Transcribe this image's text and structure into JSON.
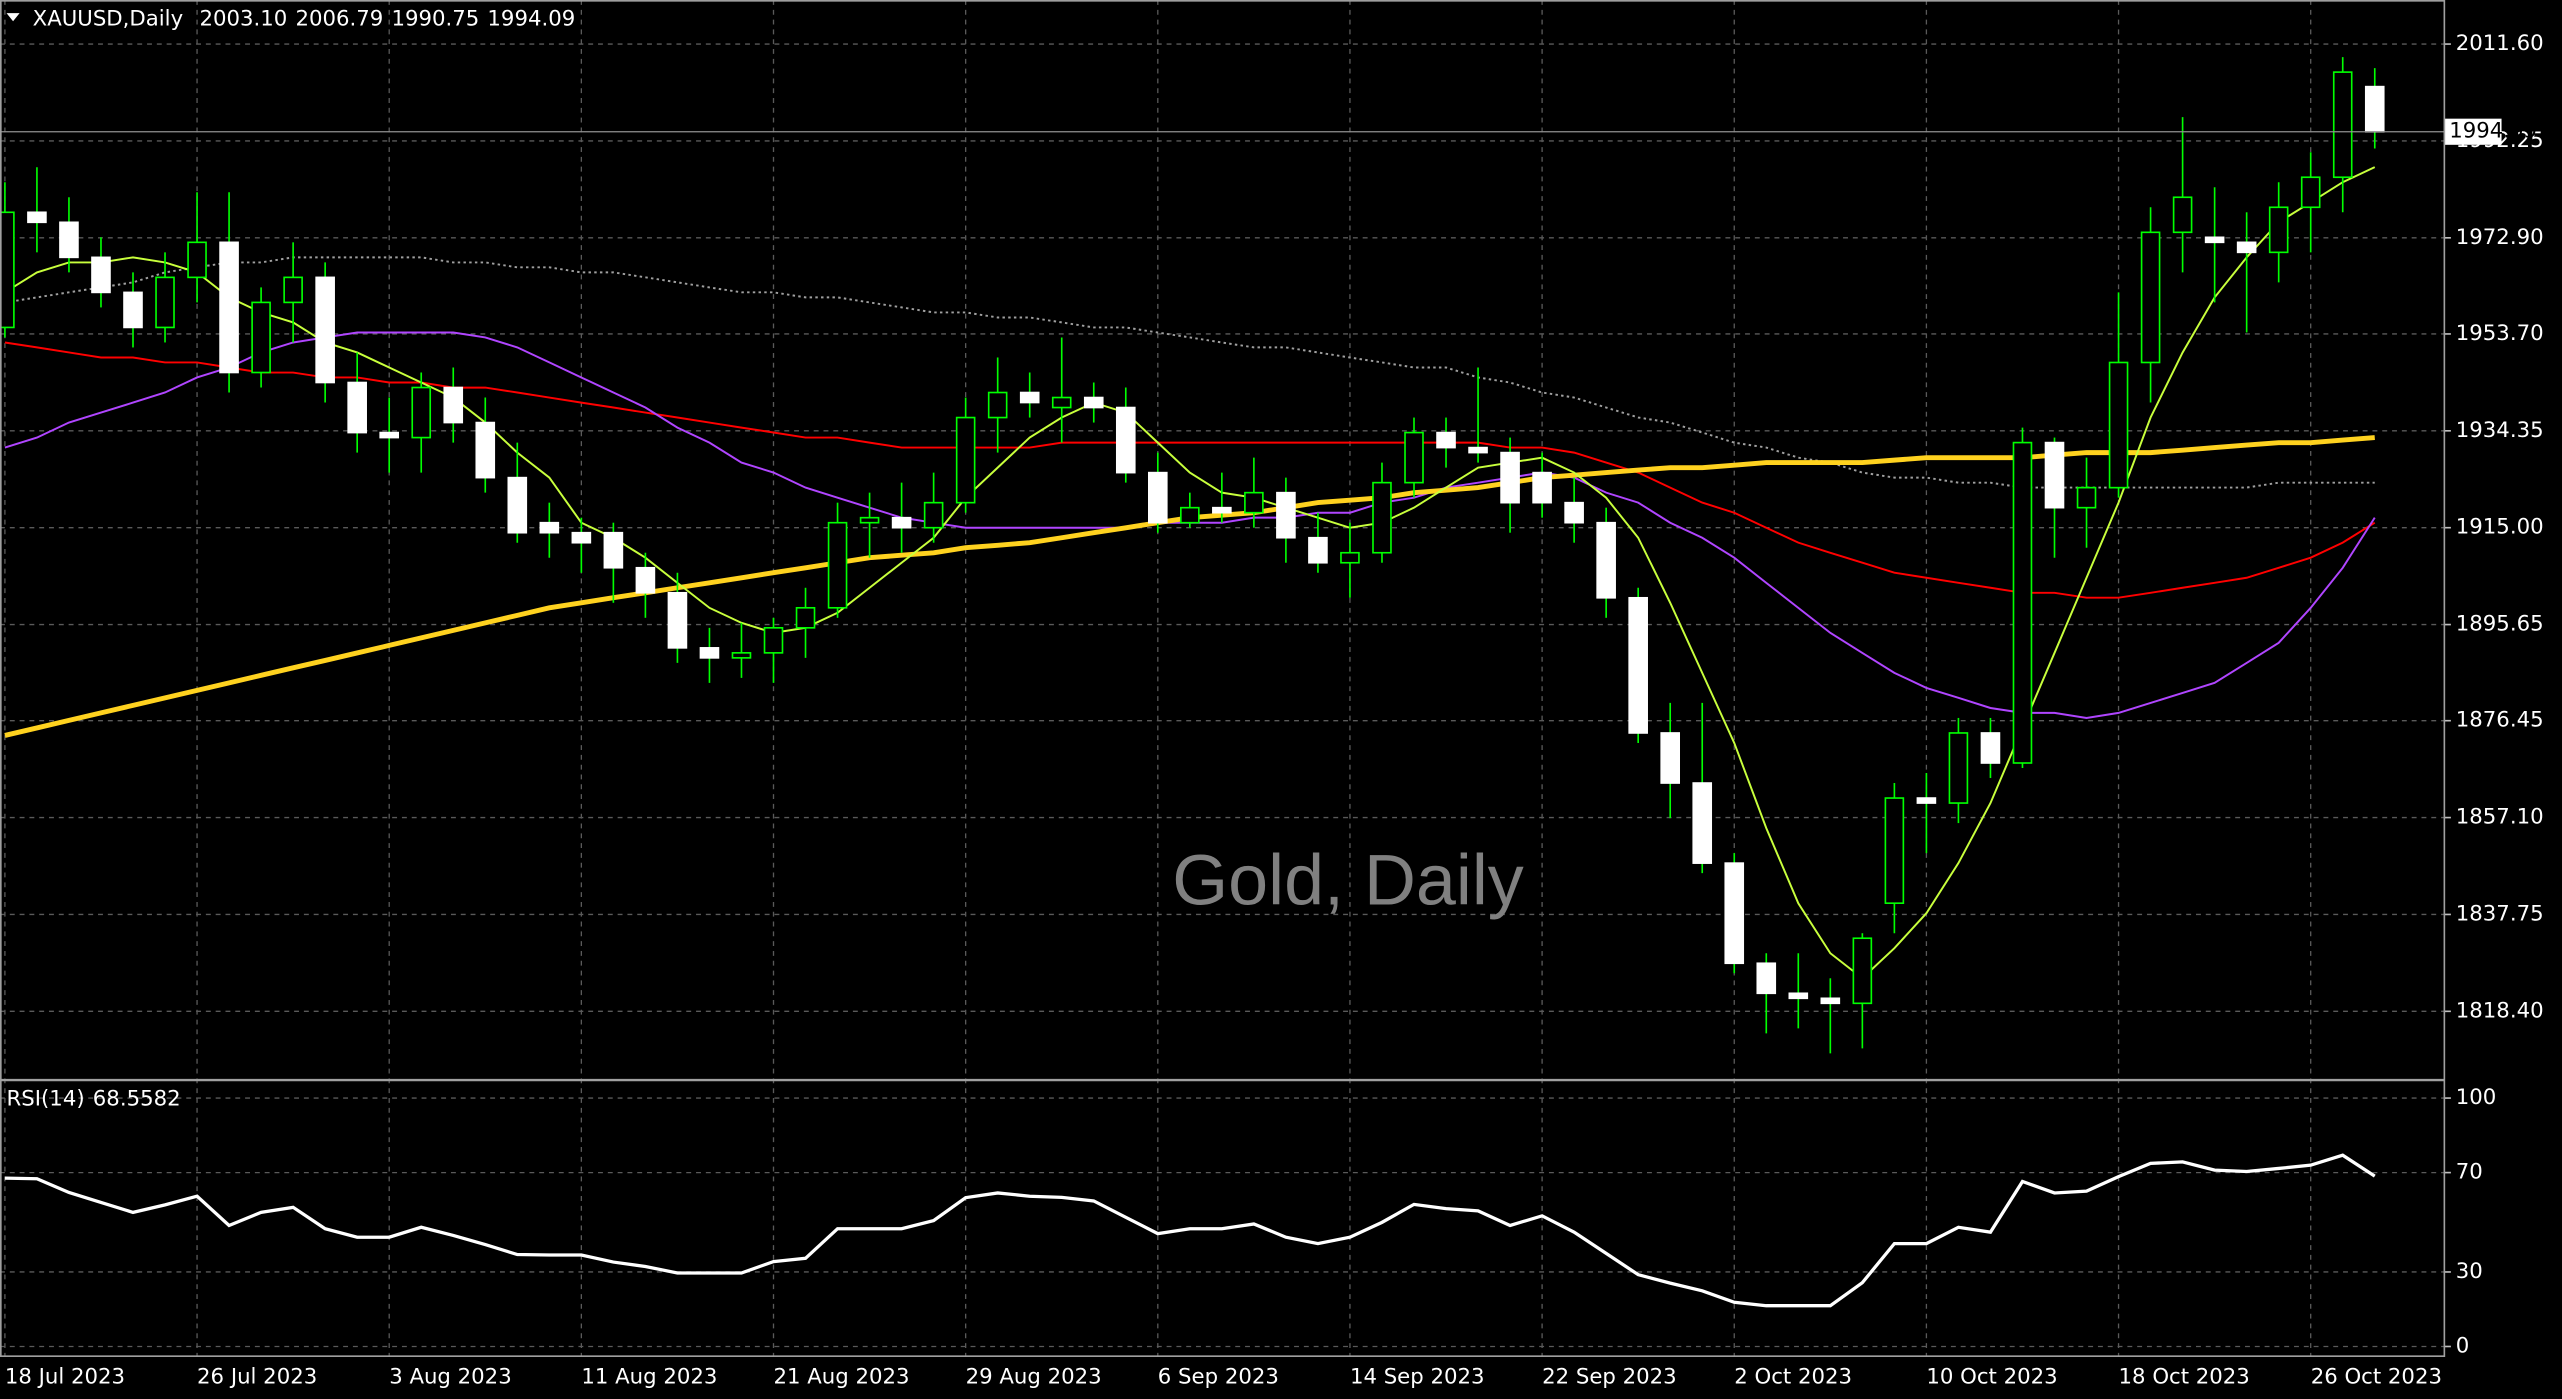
{
  "chart_data": [
    {
      "type": "candlestick",
      "title": "XAUUSD,Daily",
      "header_values": [
        "2003.10",
        "2006.79",
        "1990.75",
        "1994.09"
      ],
      "watermark": "Gold, Daily",
      "categories": [
        "18 Jul 2023",
        null,
        null,
        null,
        null,
        null,
        "26 Jul 2023",
        null,
        null,
        null,
        null,
        null,
        "3 Aug 2023",
        null,
        null,
        null,
        null,
        null,
        "11 Aug 2023",
        null,
        null,
        null,
        null,
        null,
        "21 Aug 2023",
        null,
        null,
        null,
        null,
        null,
        "29 Aug 2023",
        null,
        null,
        null,
        null,
        null,
        "6 Sep 2023",
        null,
        null,
        null,
        null,
        null,
        "14 Sep 2023",
        null,
        null,
        null,
        null,
        null,
        "22 Sep 2023",
        null,
        null,
        null,
        null,
        null,
        "2 Oct 2023",
        null,
        null,
        null,
        null,
        null,
        "10 Oct 2023",
        null,
        null,
        null,
        null,
        null,
        "18 Oct 2023",
        null,
        null,
        null,
        null,
        null,
        "26 Oct 2023",
        null,
        null
      ],
      "open": [
        1955,
        1978,
        1976,
        1969,
        1962,
        1955,
        1965,
        1972,
        1946,
        1960,
        1965,
        1944,
        1934,
        1933,
        1943,
        1936,
        1925,
        1916,
        1914,
        1914,
        1907,
        1902,
        1891,
        1889,
        1890,
        1895,
        1899,
        1916,
        1917,
        1915,
        1920,
        1937,
        1942,
        1939,
        1941,
        1939,
        1926,
        1916,
        1919,
        1918,
        1922,
        1913,
        1908,
        1910,
        1924,
        1934,
        1931,
        1930,
        1926,
        1920,
        1916,
        1901,
        1874,
        1864,
        1848,
        1828,
        1822,
        1821,
        1820,
        1840,
        1861,
        1860,
        1874,
        1868,
        1932,
        1919,
        1923,
        1948,
        1974,
        1973,
        1972,
        1970,
        1979,
        1985,
        2003.1
      ],
      "high": [
        1984,
        1987,
        1981,
        1973,
        1966,
        1970,
        1982,
        1982,
        1963,
        1972,
        1968,
        1950,
        1941,
        1946,
        1947,
        1941,
        1932,
        1920,
        1917,
        1916,
        1910,
        1906,
        1895,
        1896,
        1897,
        1903,
        1920,
        1922,
        1924,
        1926,
        1941,
        1949,
        1946,
        1953,
        1944,
        1943,
        1930,
        1922,
        1926,
        1929,
        1925,
        1918,
        1916,
        1928,
        1937,
        1937,
        1947,
        1933,
        1930,
        1925,
        1919,
        1903,
        1880,
        1880,
        1850,
        1830,
        1830,
        1825,
        1834,
        1864,
        1866,
        1877,
        1877,
        1935,
        1933,
        1929,
        1962,
        1979,
        1997,
        1983,
        1978,
        1984,
        1990,
        2009,
        2006.79
      ],
      "low": [
        1953,
        1970,
        1966,
        1959,
        1951,
        1952,
        1960,
        1942,
        1943,
        1952,
        1940,
        1930,
        1926,
        1926,
        1932,
        1922,
        1912,
        1909,
        1906,
        1900,
        1897,
        1888,
        1884,
        1885,
        1884,
        1889,
        1897,
        1909,
        1910,
        1912,
        1918,
        1930,
        1937,
        1932,
        1936,
        1924,
        1914,
        1915,
        1916,
        1915,
        1908,
        1906,
        1901,
        1908,
        1921,
        1927,
        1928,
        1914,
        1917,
        1912,
        1897,
        1872,
        1857,
        1846,
        1826,
        1814,
        1815,
        1810,
        1811,
        1834,
        1850,
        1856,
        1865,
        1867,
        1909,
        1911,
        1921,
        1940,
        1966,
        1960,
        1954,
        1964,
        1970,
        1978,
        1990.75
      ],
      "close": [
        1978,
        1976,
        1969,
        1962,
        1955,
        1965,
        1972,
        1946,
        1960,
        1965,
        1944,
        1934,
        1933,
        1943,
        1936,
        1925,
        1914,
        1914,
        1912,
        1907,
        1902,
        1891,
        1889,
        1890,
        1895,
        1899,
        1916,
        1917,
        1915,
        1920,
        1937,
        1942,
        1940,
        1941,
        1939,
        1926,
        1916,
        1919,
        1918,
        1922,
        1913,
        1908,
        1910,
        1924,
        1934,
        1931,
        1930,
        1920,
        1920,
        1916,
        1901,
        1874,
        1864,
        1848,
        1828,
        1822,
        1821,
        1820,
        1833,
        1861,
        1860,
        1874,
        1868,
        1932,
        1919,
        1923,
        1948,
        1974,
        1981,
        1972,
        1970,
        1979,
        1985,
        2006,
        1994.09
      ],
      "up_color": "#00ff00",
      "down_color": "#ffffff",
      "wick_color": "#00ff00",
      "overlays": [
        {
          "color": "#a0a0a0",
          "style": "dotted",
          "values": [
            1960,
            1961,
            1962,
            1963,
            1964,
            1966,
            1967,
            1968,
            1968,
            1969,
            1969,
            1969,
            1969,
            1969,
            1968,
            1968,
            1967,
            1967,
            1966,
            1966,
            1965,
            1964,
            1963,
            1962,
            1962,
            1961,
            1961,
            1960,
            1959,
            1958,
            1958,
            1957,
            1957,
            1956,
            1955,
            1955,
            1954,
            1953,
            1952,
            1951,
            1951,
            1950,
            1949,
            1948,
            1947,
            1947,
            1945,
            1944,
            1942,
            1941,
            1939,
            1937,
            1936,
            1934,
            1932,
            1931,
            1929,
            1928,
            1926,
            1925,
            1925,
            1924,
            1924,
            1923,
            1923,
            1923,
            1923,
            1923,
            1923,
            1923,
            1923,
            1924,
            1924,
            1924,
            1924
          ]
        },
        {
          "color": "#ff0000",
          "style": "solid",
          "values": [
            1952,
            1951,
            1950,
            1949,
            1949,
            1948,
            1948,
            1947,
            1946,
            1946,
            1945,
            1945,
            1944,
            1944,
            1943,
            1943,
            1942,
            1941,
            1940,
            1939,
            1938,
            1937,
            1936,
            1935,
            1934,
            1933,
            1933,
            1932,
            1931,
            1931,
            1931,
            1931,
            1931,
            1932,
            1932,
            1932,
            1932,
            1932,
            1932,
            1932,
            1932,
            1932,
            1932,
            1932,
            1932,
            1932,
            1932,
            1931,
            1931,
            1930,
            1928,
            1926,
            1923,
            1920,
            1918,
            1915,
            1912,
            1910,
            1908,
            1906,
            1905,
            1904,
            1903,
            1902,
            1902,
            1901,
            1901,
            1902,
            1903,
            1904,
            1905,
            1907,
            1909,
            1912,
            1916
          ]
        },
        {
          "color": "#b045ff",
          "style": "solid",
          "values": [
            1931,
            1933,
            1936,
            1938,
            1940,
            1942,
            1945,
            1947,
            1950,
            1952,
            1953,
            1954,
            1954,
            1954,
            1954,
            1953,
            1951,
            1948,
            1945,
            1942,
            1939,
            1935,
            1932,
            1928,
            1926,
            1923,
            1921,
            1919,
            1917,
            1916,
            1915,
            1915,
            1915,
            1915,
            1915,
            1915,
            1916,
            1916,
            1916,
            1917,
            1917,
            1918,
            1918,
            1920,
            1921,
            1923,
            1924,
            1925,
            1926,
            1925,
            1922,
            1920,
            1916,
            1913,
            1909,
            1904,
            1899,
            1894,
            1890,
            1886,
            1883,
            1881,
            1879,
            1878,
            1878,
            1877,
            1878,
            1880,
            1882,
            1884,
            1888,
            1892,
            1899,
            1907,
            1917
          ]
        },
        {
          "color": "#ffd21f",
          "style": "thick",
          "values": [
            1873.5,
            1875,
            1876.5,
            1878,
            1879.5,
            1881,
            1882.5,
            1884,
            1885.5,
            1887,
            1888.5,
            1890,
            1891.5,
            1893,
            1894.5,
            1896,
            1897.5,
            1899,
            1900,
            1901,
            1902,
            1903,
            1904,
            1905,
            1906,
            1907,
            1908,
            1909,
            1909.5,
            1910,
            1911,
            1911.5,
            1912,
            1913,
            1914,
            1915,
            1916,
            1917,
            1917.5,
            1918,
            1919,
            1920,
            1920.5,
            1921,
            1922,
            1922.5,
            1923,
            1924,
            1925,
            1925.5,
            1926,
            1926.5,
            1927,
            1927,
            1927.5,
            1928,
            1928,
            1928,
            1928,
            1928.5,
            1929,
            1929,
            1929,
            1929,
            1929.5,
            1930,
            1930,
            1930,
            1930.5,
            1931,
            1931.5,
            1932,
            1932,
            1932.5,
            1933
          ]
        },
        {
          "color": "#c8ff3c",
          "style": "solid",
          "values": [
            1962,
            1966,
            1968,
            1968,
            1969,
            1968,
            1966,
            1961,
            1958,
            1956,
            1952,
            1950,
            1947,
            1944,
            1941,
            1936,
            1930,
            1925,
            1916,
            1913,
            1909,
            1904,
            1899,
            1896,
            1894,
            1895,
            1898,
            1903,
            1908,
            1913,
            1921,
            1927,
            1933,
            1937,
            1940,
            1938,
            1932,
            1926,
            1922,
            1921,
            1919,
            1917,
            1915,
            1916,
            1919,
            1923,
            1927,
            1928,
            1929,
            1926,
            1921,
            1913,
            1900,
            1886,
            1872,
            1855,
            1840,
            1830,
            1825,
            1831,
            1838,
            1848,
            1860,
            1875,
            1890,
            1905,
            1920,
            1937,
            1950,
            1961,
            1969,
            1976,
            1980,
            1984,
            1987
          ]
        }
      ],
      "ylim": [
        1805.0,
        2020.4
      ],
      "yticks": [
        {
          "value": 2011.6,
          "label": "2011.60"
        },
        {
          "value": 1992.25,
          "label": "1992.25"
        },
        {
          "value": 1972.9,
          "label": "1972.90"
        },
        {
          "value": 1953.7,
          "label": "1953.70"
        },
        {
          "value": 1934.35,
          "label": "1934.35"
        },
        {
          "value": 1915,
          "label": "1915.00"
        },
        {
          "value": 1895.65,
          "label": "1895.65"
        },
        {
          "value": 1876.45,
          "label": "1876.45"
        },
        {
          "value": 1857.1,
          "label": "1857.10"
        },
        {
          "value": 1837.75,
          "label": "1837.75"
        },
        {
          "value": 1818.4,
          "label": "1818.40"
        }
      ],
      "grid": true
    },
    {
      "type": "line",
      "title": "RSI(14)",
      "color": "#ffffff",
      "values": [
        67.8,
        67.5,
        62,
        58,
        54,
        57,
        60.5,
        48.7,
        54,
        56,
        47.4,
        44,
        44,
        48,
        44.7,
        41,
        37,
        36.8,
        36.8,
        34,
        32.2,
        29.6,
        29.6,
        29.6,
        34.2,
        35.5,
        47.4,
        47.4,
        47.4,
        50.7,
        59.9,
        61.8,
        60.5,
        60,
        58.6,
        52,
        45.4,
        47.4,
        47.4,
        49.3,
        44,
        41.4,
        44,
        50,
        57.2,
        55.5,
        54.6,
        48.7,
        52.6,
        46,
        37.5,
        28.9,
        25.5,
        22.4,
        17.8,
        16.4,
        16.4,
        16.4,
        25.7,
        41.4,
        41.4,
        48,
        46,
        66.4,
        61.8,
        62.5,
        68.4,
        73.7,
        74.3,
        71,
        70.4,
        71.7,
        73,
        77,
        68.5582
      ],
      "ylim": [
        -3.9,
        106.6
      ],
      "yticks": [
        0,
        30,
        70,
        100
      ],
      "grid": true
    }
  ]
}
